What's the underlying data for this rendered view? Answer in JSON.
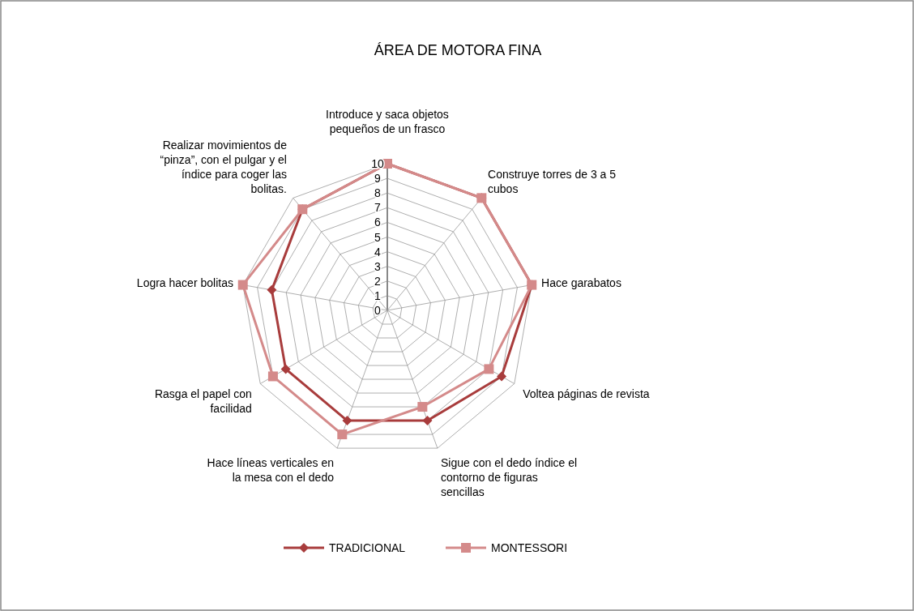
{
  "chart_data": {
    "type": "radar",
    "title": "ÁREA DE MOTORA FINA",
    "categories": [
      "Introduce y saca objetos pequeños de un frasco",
      "Construye torres de 3 a  5 cubos",
      "Hace garabatos",
      "Voltea páginas de revista",
      "Sigue con el dedo índice el contorno de figuras sencillas",
      "Hace líneas verticales en la mesa con el dedo",
      "Rasga el papel con facilidad",
      "Logra hacer bolitas",
      "Realizar movimientos de “pinza”, con el pulgar y el índice para coger las bolitas."
    ],
    "series": [
      {
        "name": "TRADICIONAL",
        "color": "#a83c3c",
        "marker": "diamond",
        "values": [
          10,
          10,
          10,
          9,
          8,
          8,
          8,
          8,
          9
        ]
      },
      {
        "name": "MONTESSORI",
        "color": "#d48a8a",
        "marker": "square",
        "values": [
          10,
          10,
          10,
          8,
          7,
          9,
          9,
          10,
          9
        ]
      }
    ],
    "ylim": [
      0,
      10
    ],
    "yticks": [
      0,
      1,
      2,
      3,
      4,
      5,
      6,
      7,
      8,
      9,
      10
    ],
    "grid": true,
    "legend": "bottom"
  }
}
